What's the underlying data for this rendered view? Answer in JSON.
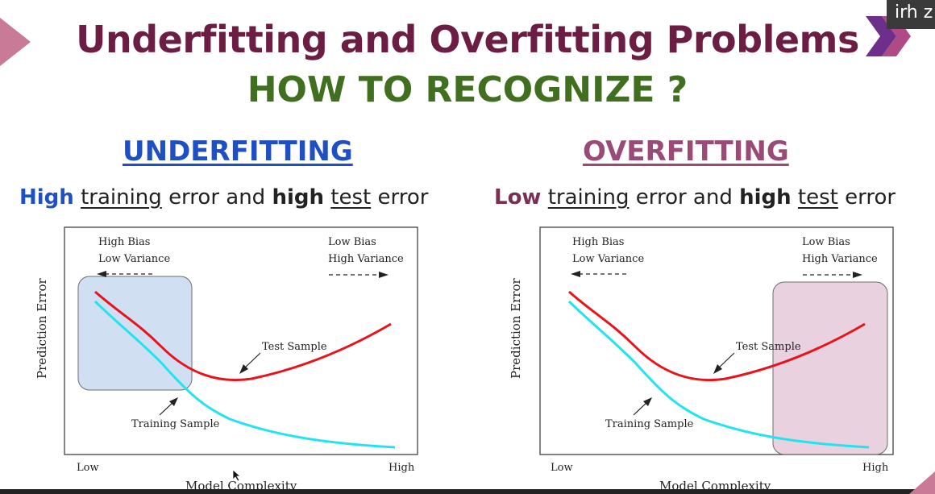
{
  "corner_tag": "irh z",
  "title": "Underfitting and Overfitting Problems",
  "subtitle": "HOW TO RECOGNIZE ?",
  "colors": {
    "title": "#6b1d44",
    "subtitle": "#3f6f1f",
    "underfitting_heading": "#1f4fc4",
    "overfitting_heading": "#9a4a76",
    "test_curve": "#e8141c",
    "training_curve": "#22e4ee",
    "underfit_box": "#c9daf0",
    "overfit_box": "#e6c9da"
  },
  "underfitting": {
    "heading": "UNDERFITTING",
    "desc": {
      "kw1": "High",
      "t1": "training",
      "t2": "error and",
      "kw2": "high",
      "t3": "test",
      "t4": "error"
    }
  },
  "overfitting": {
    "heading": "OVERFITTING",
    "desc": {
      "kw1": "Low",
      "t1": "training",
      "t2": "error and",
      "kw2": "high",
      "t3": "test",
      "t4": "error"
    }
  },
  "chart_labels": {
    "high_bias": "High Bias",
    "low_variance": "Low Variance",
    "low_bias": "Low Bias",
    "high_variance": "High Variance",
    "test_sample": "Test Sample",
    "training_sample": "Training Sample",
    "x_low": "Low",
    "x_high": "High",
    "xlabel": "Model Complexity",
    "ylabel": "Prediction Error"
  },
  "chart_data": [
    {
      "type": "line",
      "xlabel": "Model Complexity",
      "ylabel": "Prediction Error",
      "x_ticks": [
        "Low",
        "High"
      ],
      "highlight_region": "Low complexity (underfitting)",
      "series": [
        {
          "name": "Test Sample",
          "x": [
            0.0,
            0.15,
            0.3,
            0.5,
            0.7,
            1.0
          ],
          "y": [
            0.78,
            0.62,
            0.4,
            0.33,
            0.42,
            0.62
          ]
        },
        {
          "name": "Training Sample",
          "x": [
            0.0,
            0.15,
            0.3,
            0.5,
            0.7,
            1.0
          ],
          "y": [
            0.72,
            0.55,
            0.34,
            0.2,
            0.1,
            0.04
          ]
        }
      ]
    },
    {
      "type": "line",
      "xlabel": "Model Complexity",
      "ylabel": "Prediction Error",
      "x_ticks": [
        "Low",
        "High"
      ],
      "highlight_region": "High complexity (overfitting)",
      "series": [
        {
          "name": "Test Sample",
          "x": [
            0.0,
            0.15,
            0.3,
            0.5,
            0.7,
            1.0
          ],
          "y": [
            0.78,
            0.62,
            0.4,
            0.33,
            0.42,
            0.62
          ]
        },
        {
          "name": "Training Sample",
          "x": [
            0.0,
            0.15,
            0.3,
            0.5,
            0.7,
            1.0
          ],
          "y": [
            0.72,
            0.55,
            0.34,
            0.2,
            0.1,
            0.04
          ]
        }
      ]
    }
  ]
}
